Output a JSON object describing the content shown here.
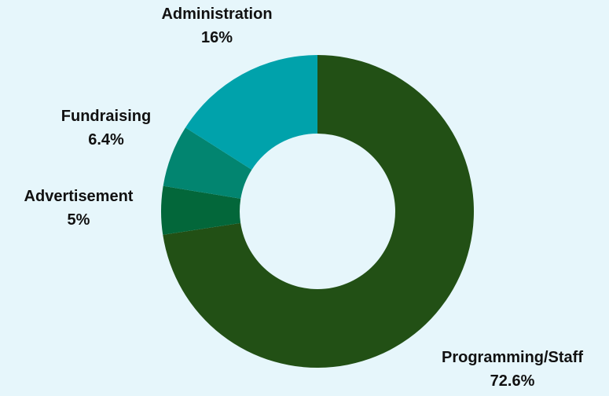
{
  "chart_data": {
    "type": "pie",
    "donut": true,
    "title": "",
    "legend": "none",
    "categories": [
      "Programming/Staff",
      "Advertisement",
      "Fundraising",
      "Administration"
    ],
    "values": [
      72.6,
      5,
      6.4,
      16
    ],
    "value_labels": [
      "72.6%",
      "5%",
      "6.4%",
      "16%"
    ],
    "colors": [
      "#225015",
      "#03673a",
      "#028570",
      "#00a2ab"
    ],
    "start_angle_deg": 0,
    "direction": "clockwise"
  }
}
